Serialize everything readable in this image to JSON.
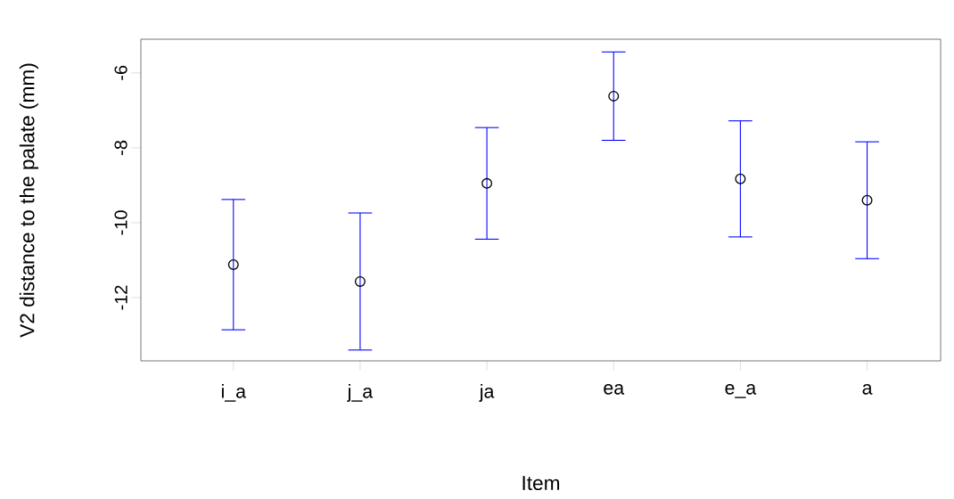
{
  "chart_data": {
    "type": "scatter",
    "xlabel": "Item",
    "ylabel": "V2 distance to the palate (mm)",
    "categories": [
      "i_a",
      "j_a",
      "ja",
      "ea",
      "e_a",
      "a"
    ],
    "values": [
      -11.12,
      -11.57,
      -8.95,
      -6.62,
      -8.83,
      -9.4
    ],
    "errors": [
      1.74,
      1.83,
      1.49,
      1.18,
      1.55,
      1.56
    ],
    "color": "#000000",
    "marker": "circle",
    "ylim": [
      -13.69,
      -5.1
    ],
    "yticks": [
      -12,
      -10,
      -8,
      -6
    ]
  }
}
